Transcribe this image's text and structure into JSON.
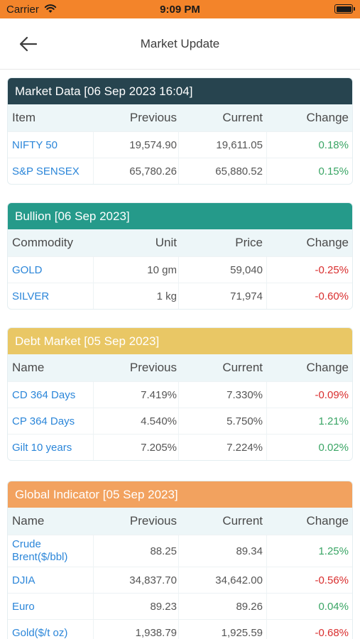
{
  "status_bar": {
    "carrier": "Carrier",
    "time": "9:09 PM"
  },
  "nav": {
    "title": "Market Update"
  },
  "sections": {
    "market": {
      "title": "Market Data [06 Sep 2023 16:04]",
      "headers": [
        "Item",
        "Previous",
        "Current",
        "Change"
      ],
      "rows": [
        [
          "NIFTY 50",
          "19,574.90",
          "19,611.05",
          "0.18%"
        ],
        [
          "S&P SENSEX",
          "65,780.26",
          "65,880.52",
          "0.15%"
        ]
      ]
    },
    "bullion": {
      "title": "Bullion [06 Sep 2023]",
      "headers": [
        "Commodity",
        "Unit",
        "Price",
        "Change"
      ],
      "rows": [
        [
          "GOLD",
          "10 gm",
          "59,040",
          "-0.25%"
        ],
        [
          "SILVER",
          "1 kg",
          "71,974",
          "-0.60%"
        ]
      ]
    },
    "debt": {
      "title": "Debt Market [05 Sep 2023]",
      "headers": [
        "Name",
        "Previous",
        "Current",
        "Change"
      ],
      "rows": [
        [
          "CD 364 Days",
          "7.419%",
          "7.330%",
          "-0.09%"
        ],
        [
          "CP 364 Days",
          "4.540%",
          "5.750%",
          "1.21%"
        ],
        [
          "Gilt 10 years",
          "7.205%",
          "7.224%",
          "0.02%"
        ]
      ]
    },
    "global": {
      "title": "Global Indicator [05 Sep 2023]",
      "headers": [
        "Name",
        "Previous",
        "Current",
        "Change"
      ],
      "rows": [
        [
          "Crude Brent($/bbl)",
          "88.25",
          "89.34",
          "1.25%"
        ],
        [
          "DJIA",
          "34,837.70",
          "34,642.00",
          "-0.56%"
        ],
        [
          "Euro",
          "89.23",
          "89.26",
          "0.04%"
        ],
        [
          "Gold($/t oz)",
          "1,938.79",
          "1,925.59",
          "-0.68%"
        ]
      ]
    }
  },
  "colors": {
    "status_bar": "#f3842a",
    "market_header": "#27444f",
    "bullion_header": "#259a8a",
    "debt_header": "#e9c765",
    "global_header": "#f2a25f",
    "positive": "#3aa565",
    "negative": "#d92e2e",
    "link": "#2b86d9"
  }
}
